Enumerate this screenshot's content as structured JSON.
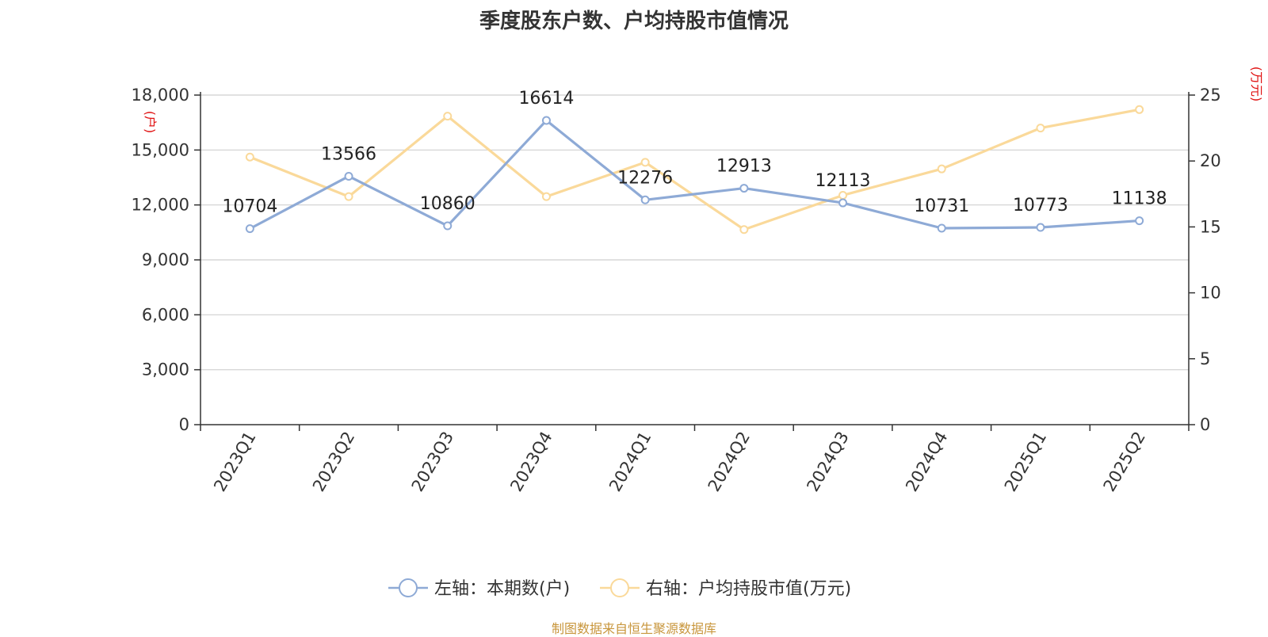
{
  "chart_data": {
    "type": "line",
    "title": "季度股东户数、户均持股市值情况",
    "categories": [
      "2023Q1",
      "2023Q2",
      "2023Q3",
      "2023Q4",
      "2024Q1",
      "2024Q2",
      "2024Q3",
      "2024Q4",
      "2025Q1",
      "2025Q2"
    ],
    "left_axis": {
      "unit": "(户)",
      "range": [
        0,
        18000
      ],
      "ticks": [
        "0",
        "3,000",
        "6,000",
        "9,000",
        "12,000",
        "15,000",
        "18,000"
      ]
    },
    "right_axis": {
      "unit": "(万元)",
      "range": [
        0,
        25
      ],
      "ticks": [
        "0",
        "5",
        "10",
        "15",
        "20",
        "25"
      ]
    },
    "series": [
      {
        "name": "左轴：本期数(户)",
        "axis": "left",
        "color": "#8eaad6",
        "values": [
          10704,
          13566,
          10860,
          16614,
          12276,
          12913,
          12113,
          10731,
          10773,
          11138
        ],
        "labels": [
          "10704",
          "13566",
          "10860",
          "16614",
          "12276",
          "12913",
          "12113",
          "10731",
          "10773",
          "11138"
        ]
      },
      {
        "name": "右轴：户均持股市值(万元)",
        "axis": "right",
        "color": "#fad99a",
        "values": [
          20.3,
          17.3,
          23.4,
          17.3,
          19.9,
          14.8,
          17.4,
          19.4,
          22.5,
          23.9
        ]
      }
    ],
    "grid": true,
    "legend_position": "bottom-center"
  },
  "source_note": "制图数据来自恒生聚源数据库"
}
